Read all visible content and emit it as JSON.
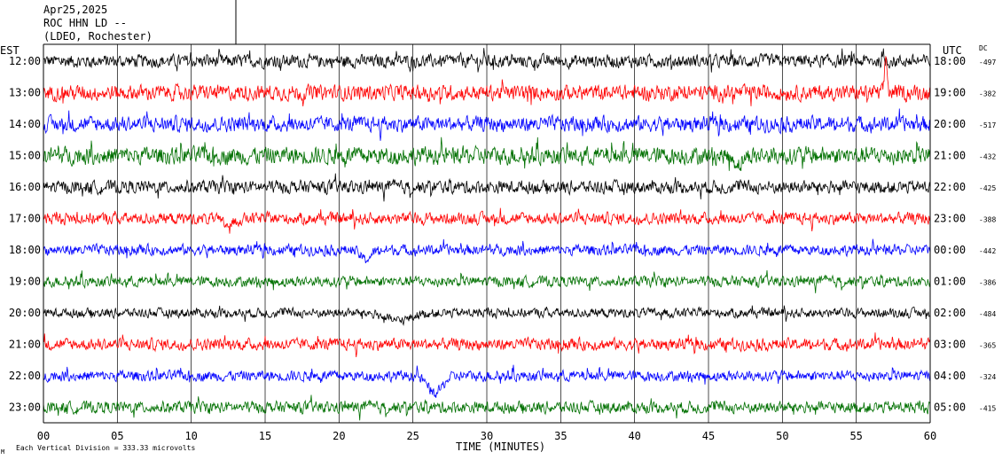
{
  "header": {
    "date": "Apr25,2025",
    "station": "ROC HHN LD --",
    "network": "(LDEO, Rochester)"
  },
  "left_zone_label": "EST",
  "right_zone_label": "UTC",
  "dc_label": "DC",
  "footer": {
    "scale_note": "Each Vertical Division =  333.33 microvolts",
    "corner_mark": "M"
  },
  "colors": {
    "black": "#000000",
    "red": "#ff0000",
    "blue": "#0000ff",
    "green": "#007000",
    "axis": "#000000"
  },
  "chart_data": {
    "type": "line",
    "title": "",
    "xlabel": "TIME (MINUTES)",
    "ylabel": "",
    "xlim": [
      0,
      60
    ],
    "x_ticks": [
      "00",
      "05",
      "10",
      "15",
      "20",
      "25",
      "30",
      "35",
      "40",
      "45",
      "50",
      "55",
      "60"
    ],
    "grid": true,
    "series": [
      {
        "est": "12:00",
        "utc": "18:00",
        "dc": "-497",
        "color": "#000000",
        "amp": 0.55,
        "events": []
      },
      {
        "est": "13:00",
        "utc": "19:00",
        "dc": "-382",
        "color": "#ff0000",
        "amp": 0.65,
        "events": [
          {
            "t": 57.0,
            "a": 2.3,
            "w": 0.12
          }
        ]
      },
      {
        "est": "14:00",
        "utc": "20:00",
        "dc": "-517",
        "color": "#0000ff",
        "amp": 0.65,
        "events": []
      },
      {
        "est": "15:00",
        "utc": "21:00",
        "dc": "-432",
        "color": "#007000",
        "amp": 0.75,
        "events": [
          {
            "t": 47.0,
            "a": -0.5,
            "w": 0.4
          }
        ]
      },
      {
        "est": "16:00",
        "utc": "22:00",
        "dc": "-425",
        "color": "#000000",
        "amp": 0.55,
        "events": []
      },
      {
        "est": "17:00",
        "utc": "23:00",
        "dc": "-388",
        "color": "#ff0000",
        "amp": 0.5,
        "events": [
          {
            "t": 12.5,
            "a": -0.4,
            "w": 0.6
          }
        ]
      },
      {
        "est": "18:00",
        "utc": "00:00",
        "dc": "-442",
        "color": "#0000ff",
        "amp": 0.45,
        "events": [
          {
            "t": 21.8,
            "a": -0.6,
            "w": 0.5
          }
        ]
      },
      {
        "est": "19:00",
        "utc": "01:00",
        "dc": "-386",
        "color": "#007000",
        "amp": 0.45,
        "events": []
      },
      {
        "est": "20:00",
        "utc": "02:00",
        "dc": "-484",
        "color": "#000000",
        "amp": 0.4,
        "events": [
          {
            "t": 24.0,
            "a": -0.5,
            "w": 1.2
          }
        ]
      },
      {
        "est": "21:00",
        "utc": "03:00",
        "dc": "-365",
        "color": "#ff0000",
        "amp": 0.5,
        "events": []
      },
      {
        "est": "22:00",
        "utc": "04:00",
        "dc": "-324",
        "color": "#0000ff",
        "amp": 0.45,
        "events": [
          {
            "t": 26.5,
            "a": -1.1,
            "w": 0.7
          }
        ]
      },
      {
        "est": "23:00",
        "utc": "05:00",
        "dc": "-415",
        "color": "#007000",
        "amp": 0.5,
        "events": []
      }
    ]
  }
}
